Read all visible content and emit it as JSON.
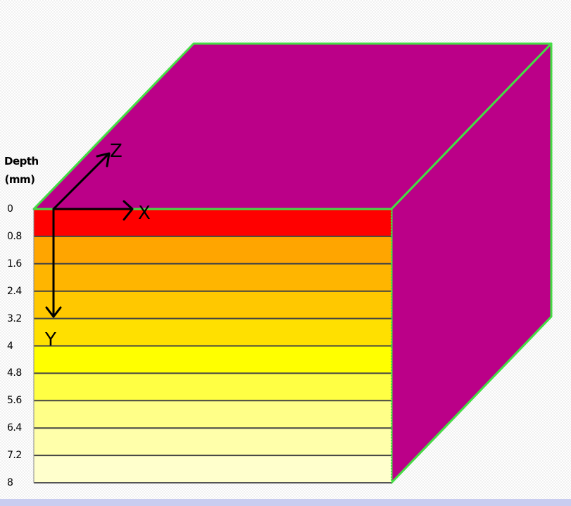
{
  "diagram": {
    "depth_title_line1": "Depth",
    "depth_title_line2": "(mm)",
    "depth_ticks": [
      "0",
      "0.8",
      "1.6",
      "2.4",
      "3.2",
      "4",
      "4.8",
      "5.6",
      "6.4",
      "7.2",
      "8"
    ],
    "axes": {
      "x_label": "X",
      "y_label": "Y",
      "z_label": "Z"
    },
    "layer_colors": [
      "#ff0000",
      "#ffa500",
      "#ffb500",
      "#ffc800",
      "#ffe000",
      "#ffff00",
      "#ffff44",
      "#ffff88",
      "#ffffaa",
      "#ffffcc",
      "#ffffff"
    ],
    "colors": {
      "box_faces": "#bb0088",
      "box_edges": "#44dd44",
      "layer_lines": "#444444",
      "axis_arrows": "#000000",
      "bottom_bar": "#c9cdf0"
    }
  }
}
